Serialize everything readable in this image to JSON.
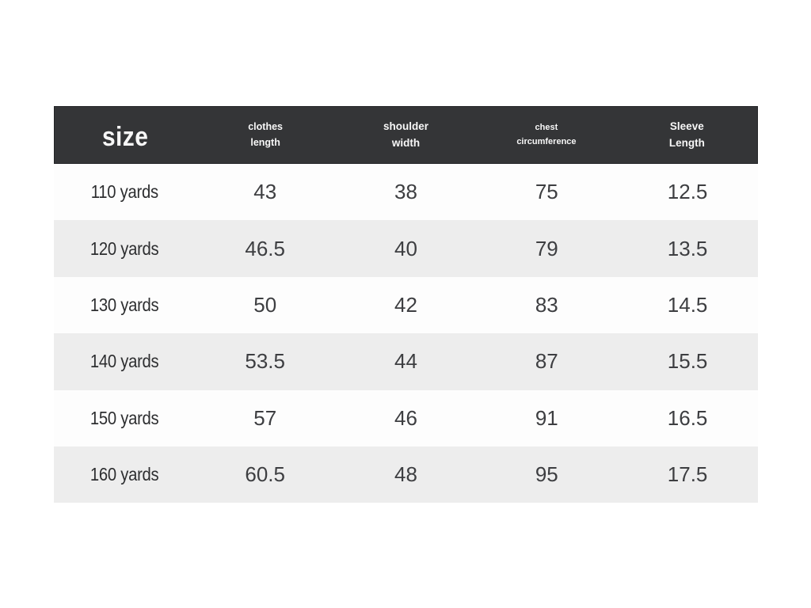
{
  "table": {
    "header": {
      "size_label": "size",
      "columns": [
        {
          "line1": "clothes",
          "line2": "length"
        },
        {
          "line1": "shoulder",
          "line2": "width"
        },
        {
          "line1": "chest",
          "line2": "circumference"
        },
        {
          "line1": "Sleeve",
          "line2": "Length"
        }
      ]
    },
    "rows": [
      {
        "size": "110 yards",
        "values": [
          "43",
          "38",
          "75",
          "12.5"
        ]
      },
      {
        "size": "120 yards",
        "values": [
          "46.5",
          "40",
          "79",
          "13.5"
        ]
      },
      {
        "size": "130 yards",
        "values": [
          "50",
          "42",
          "83",
          "14.5"
        ]
      },
      {
        "size": "140 yards",
        "values": [
          "53.5",
          "44",
          "87",
          "15.5"
        ]
      },
      {
        "size": "150 yards",
        "values": [
          "57",
          "46",
          "91",
          "16.5"
        ]
      },
      {
        "size": "160 yards",
        "values": [
          "60.5",
          "48",
          "95",
          "17.5"
        ]
      }
    ]
  },
  "colors": {
    "page_bg": "#ffffff",
    "header_bg": "#343537",
    "header_text": "#f7f7f7",
    "row_bg": "#fdfdfd",
    "row_alt_bg": "#ededed",
    "value_text": "#3d3e41",
    "label_text": "#2d2e30"
  },
  "chart_data": {
    "type": "table",
    "title": "size",
    "columns": [
      "size",
      "clothes length",
      "shoulder width",
      "chest circumference",
      "Sleeve Length"
    ],
    "rows": [
      [
        "110 yards",
        43,
        38,
        75,
        12.5
      ],
      [
        "120 yards",
        46.5,
        40,
        79,
        13.5
      ],
      [
        "130 yards",
        50,
        42,
        83,
        14.5
      ],
      [
        "140 yards",
        53.5,
        44,
        87,
        15.5
      ],
      [
        "150 yards",
        57,
        46,
        91,
        16.5
      ],
      [
        "160 yards",
        60.5,
        48,
        95,
        17.5
      ]
    ],
    "layout": {
      "header_style": "dark-bar",
      "row_striping": "white-gray-alternating",
      "alignment": "center"
    }
  }
}
